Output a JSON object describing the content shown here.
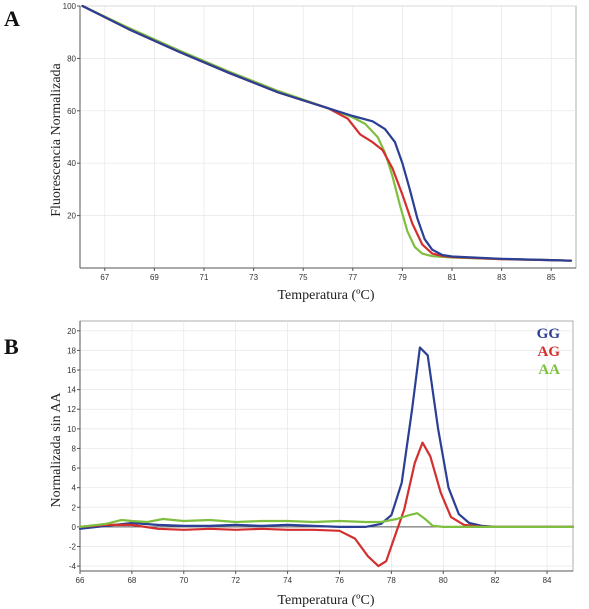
{
  "chart_data": [
    {
      "panel_label": "A",
      "type": "line",
      "xlabel": "Temperatura (ºC)",
      "ylabel": "Fluorescencia Normalizada",
      "xlim": [
        66.0,
        86.0
      ],
      "ylim": [
        0,
        100
      ],
      "xticks": [
        67,
        69,
        71,
        73,
        75,
        77,
        79,
        81,
        83,
        85
      ],
      "yticks": [
        20,
        40,
        60,
        80,
        100
      ],
      "grid": true,
      "series": [
        {
          "color": "#7fbf3f",
          "x": [
            66.1,
            68,
            70,
            72,
            74,
            76,
            77,
            77.5,
            78,
            78.3,
            78.6,
            78.9,
            79.2,
            79.5,
            79.8,
            80.2,
            81,
            83,
            85,
            85.8
          ],
          "y": [
            100,
            91.5,
            83,
            75,
            67.5,
            61,
            57.5,
            55,
            50,
            44,
            35,
            24,
            14,
            8,
            5.5,
            4.5,
            4,
            3.4,
            3.0,
            2.8
          ]
        },
        {
          "color": "#d32f2f",
          "x": [
            66.1,
            68,
            70,
            72,
            74,
            76,
            76.8,
            77.3,
            77.8,
            78.2,
            78.6,
            79.0,
            79.4,
            79.8,
            80.2,
            80.6,
            81,
            83,
            85,
            85.8
          ],
          "y": [
            100,
            91,
            82.5,
            74.5,
            67,
            61,
            57,
            51,
            48,
            45,
            38,
            28,
            17,
            9,
            5.5,
            4.6,
            4.2,
            3.4,
            3.0,
            2.8
          ]
        },
        {
          "color": "#2b3f94",
          "x": [
            66.1,
            68,
            70,
            72,
            74,
            76,
            77,
            77.8,
            78.3,
            78.7,
            79.0,
            79.3,
            79.6,
            79.9,
            80.2,
            80.6,
            81,
            83,
            85,
            85.8
          ],
          "y": [
            100,
            91,
            82.5,
            74.5,
            67,
            61,
            58,
            56,
            53,
            48,
            40,
            30,
            19,
            11,
            7,
            5,
            4.4,
            3.5,
            3.0,
            2.8
          ]
        }
      ]
    },
    {
      "panel_label": "B",
      "type": "line",
      "xlabel": "Temperatura (ºC)",
      "ylabel": "Normalizada sin AA",
      "xlim": [
        66.0,
        85.0
      ],
      "ylim": [
        -4.5,
        21
      ],
      "xticks": [
        66,
        68,
        70,
        72,
        74,
        76,
        78,
        80,
        82,
        84
      ],
      "yticks": [
        -4,
        -2,
        0,
        2,
        4,
        6,
        8,
        10,
        12,
        14,
        16,
        18,
        20
      ],
      "grid": true,
      "legend": [
        "GG",
        "AG",
        "AA"
      ],
      "legend_colors": [
        "#2b3f94",
        "#d32f2f",
        "#7fbf3f"
      ],
      "legend_position": "top-right",
      "series": [
        {
          "name": "GG",
          "color": "#2b3f94",
          "x": [
            66,
            67,
            68,
            69,
            70,
            71,
            72,
            73,
            74,
            75,
            76,
            77,
            77.6,
            78,
            78.4,
            78.8,
            79.1,
            79.4,
            79.8,
            80.2,
            80.6,
            81.0,
            81.5,
            82,
            83,
            84,
            85
          ],
          "y": [
            -0.2,
            0.1,
            0.4,
            0.2,
            0.1,
            0.1,
            0.2,
            0.1,
            0.2,
            0.1,
            0,
            0,
            0.3,
            1.2,
            4.5,
            12,
            18.3,
            17.5,
            10,
            4,
            1.3,
            0.4,
            0.1,
            0,
            0,
            0,
            0
          ]
        },
        {
          "name": "AG",
          "color": "#d32f2f",
          "x": [
            66,
            67,
            68,
            69,
            70,
            71,
            72,
            73,
            74,
            75,
            76,
            76.6,
            77.1,
            77.5,
            77.8,
            78.1,
            78.5,
            78.9,
            79.2,
            79.5,
            79.9,
            80.3,
            80.8,
            81.5,
            82,
            83,
            84,
            85
          ],
          "y": [
            0,
            0.2,
            0.2,
            -0.2,
            -0.3,
            -0.2,
            -0.3,
            -0.2,
            -0.3,
            -0.3,
            -0.4,
            -1.2,
            -3.0,
            -4.0,
            -3.5,
            -1.2,
            1.8,
            6.5,
            8.6,
            7.2,
            3.5,
            1.0,
            0.2,
            0,
            0,
            0,
            0,
            0
          ]
        },
        {
          "name": "AA",
          "color": "#7fbf3f",
          "x": [
            66,
            67,
            67.6,
            68,
            68.6,
            69.2,
            70,
            71,
            72,
            73,
            74,
            75,
            76,
            77,
            77.6,
            78.2,
            78.7,
            79.0,
            79.3,
            79.6,
            80,
            81,
            82,
            83,
            84,
            85
          ],
          "y": [
            0,
            0.3,
            0.7,
            0.6,
            0.5,
            0.8,
            0.6,
            0.7,
            0.5,
            0.6,
            0.6,
            0.5,
            0.6,
            0.5,
            0.5,
            0.8,
            1.2,
            1.4,
            0.8,
            0.1,
            0,
            0,
            0,
            0,
            0,
            0
          ]
        }
      ]
    }
  ]
}
